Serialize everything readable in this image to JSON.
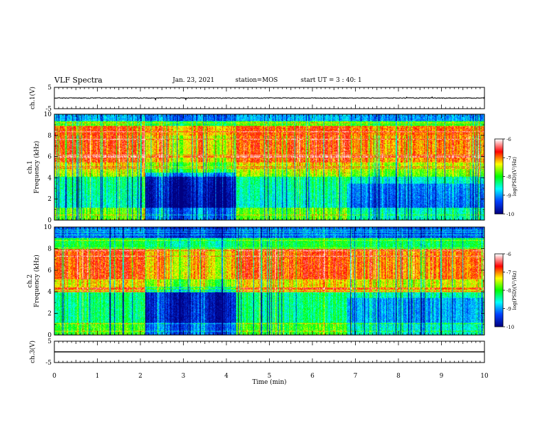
{
  "header": {
    "title": "VLF Spectra",
    "date": "Jan. 23, 2021",
    "station": "station=MOS",
    "start": "start UT =  3 : 40: 1"
  },
  "chart_data": {
    "type": "heatmap",
    "xlabel": "Time (min)",
    "xlim": [
      0,
      10
    ],
    "xticks": [
      "0",
      "1",
      "2",
      "3",
      "4",
      "5",
      "6",
      "7",
      "8",
      "9",
      "10"
    ],
    "panels": [
      {
        "kind": "waveform",
        "ylabel": "ch.1(V)",
        "ylim": [
          -5,
          5
        ],
        "yticks": [
          "5",
          "-5"
        ],
        "trace_level": 0
      },
      {
        "kind": "spectrogram",
        "ylabel": "ch.1\nFrequency (kHz)",
        "ylim": [
          0,
          10
        ],
        "yticks": [
          "0",
          "2",
          "4",
          "6",
          "8",
          "10"
        ]
      },
      {
        "kind": "spectrogram",
        "ylabel": "ch.2\nFrequency (kHz)",
        "ylim": [
          0,
          10
        ],
        "yticks": [
          "0",
          "2",
          "4",
          "6",
          "8",
          "10"
        ]
      },
      {
        "kind": "waveform",
        "ylabel": "ch.3(V)",
        "ylim": [
          -5,
          5
        ],
        "yticks": [
          "5",
          "-5"
        ],
        "trace_level": 0
      }
    ],
    "colorbar": {
      "label": "log(PSD)(V²/Hz)",
      "range": [
        -10,
        -6
      ],
      "ticks": [
        "-6",
        "-7",
        "-8",
        "-9",
        "-10"
      ],
      "colors": [
        "#000080",
        "#0040ff",
        "#00ffff",
        "#00ff00",
        "#ffff00",
        "#ff0000",
        "#ffffff"
      ]
    }
  }
}
